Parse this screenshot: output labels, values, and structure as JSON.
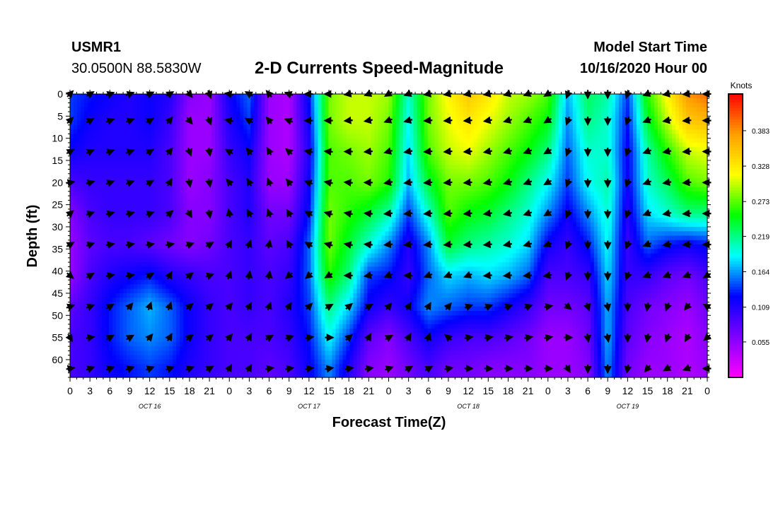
{
  "header": {
    "station": "USMR1",
    "coordinates": "30.0500N 88.5830W",
    "title": "2-D Currents Speed-Magnitude",
    "model_start_label": "Model Start Time",
    "model_start_value": "10/16/2020 Hour 00"
  },
  "chart_data": {
    "type": "heatmap",
    "title": "2-D Currents Speed-Magnitude",
    "xlabel": "Forecast Time(Z)",
    "ylabel": "Depth (ft)",
    "x_ticks": [
      "0",
      "3",
      "6",
      "9",
      "12",
      "15",
      "18",
      "21",
      "0",
      "3",
      "6",
      "9",
      "12",
      "15",
      "18",
      "21",
      "0",
      "3",
      "6",
      "9",
      "12",
      "15",
      "18",
      "21",
      "0",
      "3",
      "6",
      "9",
      "12",
      "15",
      "18",
      "21",
      "0"
    ],
    "date_labels": [
      "OCT 16",
      "OCT 17",
      "OCT 18",
      "OCT 19"
    ],
    "y_ticks": [
      0,
      5,
      10,
      15,
      20,
      25,
      30,
      35,
      40,
      45,
      50,
      55,
      60
    ],
    "ylim": [
      0,
      64
    ],
    "xlim_hours": [
      0,
      96
    ],
    "colorbar": {
      "unit": "Knots",
      "ticks": [
        0.055,
        0.109,
        0.164,
        0.219,
        0.273,
        0.328,
        0.383
      ],
      "tick_labels": [
        "0.055",
        "0.109",
        "0.164",
        "0.219",
        "0.273",
        "0.328",
        "0.383"
      ],
      "range": [
        0.0,
        0.44
      ],
      "colors": [
        "#ff00ff",
        "#7f00ff",
        "#0000ff",
        "#00ffff",
        "#00ff00",
        "#ffff00",
        "#ff9f00",
        "#ff0000"
      ]
    },
    "time_hours": [
      0,
      3,
      6,
      9,
      12,
      15,
      18,
      21,
      24,
      27,
      30,
      33,
      36,
      39,
      42,
      45,
      48,
      51,
      54,
      57,
      60,
      63,
      66,
      69,
      72,
      75,
      78,
      81,
      84,
      87,
      90,
      93,
      96
    ],
    "depths_ft": [
      0,
      6,
      13,
      20,
      27,
      34,
      41,
      48,
      55,
      62
    ],
    "speed_knots": [
      [
        0.14,
        0.13,
        0.12,
        0.11,
        0.12,
        0.11,
        0.06,
        0.05,
        0.12,
        0.15,
        0.05,
        0.04,
        0.13,
        0.28,
        0.3,
        0.3,
        0.29,
        0.2,
        0.28,
        0.32,
        0.35,
        0.33,
        0.3,
        0.29,
        0.27,
        0.17,
        0.23,
        0.21,
        0.14,
        0.26,
        0.32,
        0.38,
        0.4
      ],
      [
        0.14,
        0.12,
        0.11,
        0.11,
        0.12,
        0.1,
        0.05,
        0.05,
        0.11,
        0.14,
        0.05,
        0.04,
        0.12,
        0.28,
        0.3,
        0.3,
        0.28,
        0.19,
        0.28,
        0.31,
        0.33,
        0.31,
        0.29,
        0.27,
        0.25,
        0.16,
        0.22,
        0.2,
        0.13,
        0.24,
        0.3,
        0.35,
        0.36
      ],
      [
        0.12,
        0.11,
        0.11,
        0.11,
        0.11,
        0.09,
        0.05,
        0.05,
        0.1,
        0.12,
        0.05,
        0.04,
        0.11,
        0.27,
        0.28,
        0.29,
        0.27,
        0.18,
        0.27,
        0.3,
        0.31,
        0.29,
        0.27,
        0.25,
        0.22,
        0.15,
        0.2,
        0.2,
        0.12,
        0.21,
        0.26,
        0.3,
        0.31
      ],
      [
        0.09,
        0.1,
        0.1,
        0.1,
        0.1,
        0.09,
        0.05,
        0.06,
        0.09,
        0.11,
        0.05,
        0.05,
        0.12,
        0.27,
        0.27,
        0.28,
        0.26,
        0.17,
        0.24,
        0.28,
        0.28,
        0.27,
        0.25,
        0.22,
        0.19,
        0.14,
        0.19,
        0.21,
        0.12,
        0.2,
        0.23,
        0.27,
        0.28
      ],
      [
        0.06,
        0.09,
        0.1,
        0.1,
        0.1,
        0.09,
        0.06,
        0.06,
        0.09,
        0.11,
        0.07,
        0.07,
        0.13,
        0.28,
        0.26,
        0.24,
        0.21,
        0.14,
        0.2,
        0.27,
        0.25,
        0.24,
        0.22,
        0.2,
        0.16,
        0.12,
        0.16,
        0.2,
        0.11,
        0.18,
        0.2,
        0.22,
        0.22
      ],
      [
        0.05,
        0.08,
        0.09,
        0.09,
        0.08,
        0.07,
        0.06,
        0.07,
        0.09,
        0.1,
        0.08,
        0.09,
        0.15,
        0.28,
        0.24,
        0.2,
        0.16,
        0.11,
        0.16,
        0.24,
        0.22,
        0.21,
        0.2,
        0.18,
        0.12,
        0.1,
        0.13,
        0.19,
        0.1,
        0.15,
        0.13,
        0.12,
        0.13
      ],
      [
        0.05,
        0.09,
        0.11,
        0.12,
        0.13,
        0.11,
        0.1,
        0.09,
        0.09,
        0.1,
        0.09,
        0.1,
        0.15,
        0.26,
        0.22,
        0.14,
        0.13,
        0.1,
        0.15,
        0.18,
        0.17,
        0.18,
        0.17,
        0.15,
        0.09,
        0.09,
        0.1,
        0.18,
        0.1,
        0.1,
        0.08,
        0.07,
        0.09
      ],
      [
        0.08,
        0.1,
        0.13,
        0.15,
        0.17,
        0.15,
        0.12,
        0.1,
        0.09,
        0.1,
        0.09,
        0.11,
        0.14,
        0.22,
        0.18,
        0.12,
        0.1,
        0.12,
        0.16,
        0.15,
        0.14,
        0.14,
        0.12,
        0.1,
        0.07,
        0.07,
        0.08,
        0.17,
        0.09,
        0.07,
        0.06,
        0.05,
        0.07
      ],
      [
        0.09,
        0.1,
        0.13,
        0.15,
        0.16,
        0.15,
        0.12,
        0.1,
        0.09,
        0.09,
        0.09,
        0.1,
        0.13,
        0.19,
        0.14,
        0.08,
        0.06,
        0.09,
        0.12,
        0.1,
        0.09,
        0.09,
        0.08,
        0.07,
        0.05,
        0.05,
        0.07,
        0.17,
        0.08,
        0.06,
        0.05,
        0.04,
        0.06
      ],
      [
        0.09,
        0.1,
        0.12,
        0.13,
        0.14,
        0.13,
        0.11,
        0.1,
        0.09,
        0.09,
        0.08,
        0.09,
        0.12,
        0.16,
        0.11,
        0.06,
        0.05,
        0.07,
        0.09,
        0.07,
        0.07,
        0.06,
        0.06,
        0.06,
        0.05,
        0.05,
        0.06,
        0.16,
        0.07,
        0.05,
        0.05,
        0.04,
        0.05
      ]
    ],
    "direction_deg": [
      [
        45,
        60,
        70,
        70,
        65,
        60,
        140,
        160,
        280,
        300,
        320,
        290,
        270,
        270,
        260,
        250,
        240,
        250,
        260,
        260,
        260,
        260,
        255,
        250,
        240,
        200,
        180,
        180,
        200,
        250,
        260,
        265,
        270
      ],
      [
        45,
        60,
        70,
        70,
        60,
        40,
        140,
        160,
        280,
        300,
        320,
        290,
        270,
        270,
        265,
        260,
        250,
        255,
        265,
        265,
        265,
        260,
        255,
        250,
        240,
        200,
        180,
        180,
        200,
        250,
        260,
        265,
        270
      ],
      [
        60,
        65,
        70,
        70,
        60,
        40,
        160,
        170,
        300,
        320,
        330,
        310,
        280,
        275,
        270,
        265,
        255,
        260,
        265,
        265,
        265,
        260,
        255,
        250,
        240,
        200,
        180,
        180,
        200,
        250,
        260,
        265,
        270
      ],
      [
        80,
        75,
        70,
        70,
        60,
        30,
        170,
        170,
        320,
        330,
        340,
        320,
        290,
        280,
        275,
        270,
        260,
        262,
        265,
        265,
        265,
        260,
        255,
        250,
        240,
        200,
        180,
        180,
        200,
        250,
        260,
        265,
        270
      ],
      [
        50,
        70,
        75,
        75,
        70,
        50,
        150,
        170,
        350,
        330,
        340,
        330,
        300,
        285,
        280,
        275,
        265,
        265,
        265,
        265,
        265,
        262,
        258,
        252,
        240,
        200,
        180,
        180,
        200,
        250,
        260,
        265,
        270
      ],
      [
        60,
        70,
        80,
        80,
        80,
        80,
        70,
        60,
        30,
        20,
        10,
        330,
        300,
        285,
        280,
        275,
        265,
        265,
        265,
        265,
        265,
        265,
        260,
        255,
        250,
        200,
        180,
        180,
        200,
        250,
        260,
        265,
        270
      ],
      [
        130,
        60,
        80,
        80,
        60,
        30,
        50,
        70,
        20,
        10,
        10,
        230,
        230,
        240,
        270,
        260,
        250,
        270,
        250,
        250,
        250,
        265,
        265,
        265,
        260,
        200,
        180,
        180,
        200,
        250,
        250,
        250,
        240
      ],
      [
        70,
        70,
        60,
        40,
        20,
        20,
        50,
        50,
        40,
        30,
        20,
        30,
        45,
        60,
        50,
        60,
        40,
        30,
        30,
        40,
        70,
        70,
        70,
        70,
        80,
        130,
        160,
        170,
        180,
        190,
        200,
        220,
        300
      ],
      [
        150,
        80,
        60,
        60,
        40,
        30,
        50,
        50,
        40,
        30,
        60,
        70,
        80,
        90,
        50,
        30,
        60,
        30,
        20,
        310,
        80,
        80,
        80,
        80,
        80,
        90,
        170,
        170,
        180,
        190,
        200,
        210,
        230
      ],
      [
        80,
        70,
        70,
        70,
        70,
        70,
        70,
        60,
        30,
        30,
        80,
        80,
        80,
        80,
        80,
        80,
        70,
        60,
        60,
        80,
        90,
        90,
        90,
        90,
        90,
        150,
        180,
        180,
        190,
        220,
        240,
        250,
        270
      ]
    ]
  }
}
